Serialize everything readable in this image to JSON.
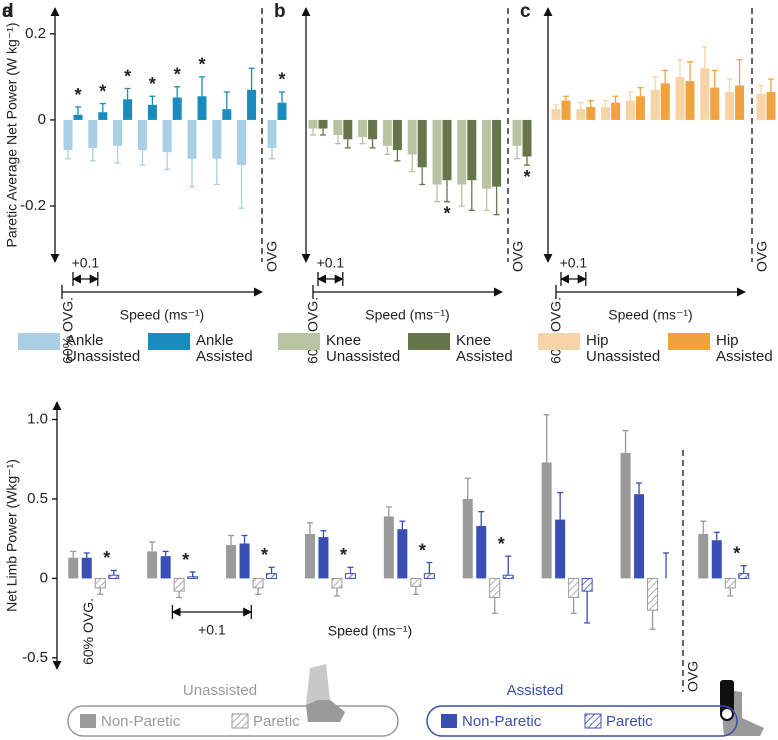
{
  "chart_data": [
    {
      "type": "bar",
      "label": "a",
      "y_label": "Paretic Average Net Power (W kg⁻¹)",
      "x_label": "Speed (ms⁻¹)",
      "step_label": "+0.1",
      "sig_label": "*",
      "categories": [
        "60% OVG.",
        null,
        null,
        null,
        null,
        null,
        null,
        null,
        "OVG"
      ],
      "series": [
        {
          "name": "Ankle Unassisted",
          "color": "#a8cfe4",
          "values": [
            -0.07,
            -0.065,
            -0.06,
            -0.07,
            -0.075,
            -0.09,
            -0.09,
            -0.105,
            -0.065
          ],
          "errors": [
            0.02,
            0.03,
            0.04,
            0.035,
            0.04,
            0.065,
            0.06,
            0.1,
            0.025
          ]
        },
        {
          "name": "Ankle Assisted",
          "color": "#1a8bbf",
          "values": [
            0.012,
            0.018,
            0.048,
            0.035,
            0.052,
            0.055,
            0.025,
            0.07,
            0.04
          ],
          "errors": [
            0.018,
            0.02,
            0.025,
            0.02,
            0.025,
            0.045,
            0.04,
            0.05,
            0.025
          ],
          "significant": [
            true,
            true,
            true,
            true,
            true,
            true,
            false,
            false,
            true
          ]
        }
      ],
      "ylim": [
        -0.33,
        0.26
      ],
      "yticks": [
        0.2,
        0,
        -0.2
      ]
    },
    {
      "type": "bar",
      "label": "b",
      "x_label": "Speed (ms⁻¹)",
      "step_label": "+0.1",
      "sig_label": "*",
      "categories": [
        "60% OVG.",
        null,
        null,
        null,
        null,
        null,
        null,
        null,
        "OVG"
      ],
      "series": [
        {
          "name": "Knee Unassisted",
          "color": "#b8c3a1",
          "values": [
            -0.02,
            -0.035,
            -0.04,
            -0.06,
            -0.08,
            -0.15,
            -0.15,
            -0.16,
            -0.06
          ],
          "errors": [
            0.015,
            0.02,
            0.015,
            0.02,
            0.04,
            0.04,
            0.05,
            0.05,
            0.03
          ]
        },
        {
          "name": "Knee Assisted",
          "color": "#67754a",
          "values": [
            -0.02,
            -0.045,
            -0.045,
            -0.07,
            -0.11,
            -0.14,
            -0.14,
            -0.155,
            -0.085
          ],
          "errors": [
            0.015,
            0.02,
            0.02,
            0.025,
            0.04,
            0.05,
            0.07,
            0.065,
            0.02
          ],
          "significant": [
            false,
            false,
            false,
            false,
            false,
            true,
            false,
            false,
            true
          ]
        }
      ],
      "ylim": [
        -0.33,
        0.26
      ]
    },
    {
      "type": "bar",
      "label": "c",
      "x_label": "Speed (ms⁻¹)",
      "step_label": "+0.1",
      "categories": [
        "60% OVG.",
        null,
        null,
        null,
        null,
        null,
        null,
        null,
        "OVG"
      ],
      "series": [
        {
          "name": "Hip Unassisted",
          "color": "#f7d3a8",
          "values": [
            0.025,
            0.025,
            0.03,
            0.045,
            0.07,
            0.1,
            0.12,
            0.065,
            0.06
          ],
          "errors": [
            0.01,
            0.015,
            0.015,
            0.02,
            0.03,
            0.04,
            0.05,
            0.03,
            0.02
          ]
        },
        {
          "name": "Hip Assisted",
          "color": "#f0a23e",
          "values": [
            0.045,
            0.03,
            0.04,
            0.055,
            0.085,
            0.09,
            0.075,
            0.08,
            0.065
          ],
          "errors": [
            0.01,
            0.015,
            0.015,
            0.02,
            0.03,
            0.045,
            0.04,
            0.06,
            0.03
          ]
        }
      ],
      "ylim": [
        -0.33,
        0.26
      ]
    },
    {
      "type": "grouped-bar",
      "label": "d",
      "y_label": "Net Limb Power (Wkg⁻¹)",
      "x_label": "Speed (ms⁻¹)",
      "step_label": "+0.1",
      "sig_label": "*",
      "categories": [
        "60% OVG.",
        null,
        null,
        null,
        null,
        null,
        null,
        null,
        "OVG"
      ],
      "groups": [
        {
          "name": "Unassisted",
          "color": "#9a9a9a",
          "series": [
            {
              "name": "Non-Paretic",
              "color": "#9a9a9a",
              "hatch": false,
              "values": [
                0.13,
                0.17,
                0.21,
                0.28,
                0.39,
                0.5,
                0.73,
                0.79,
                0.28
              ],
              "errors": [
                0.04,
                0.06,
                0.06,
                0.07,
                0.06,
                0.13,
                0.3,
                0.14,
                0.08
              ]
            },
            {
              "name": "Paretic",
              "color": "#9a9a9a",
              "hatch": true,
              "values": [
                -0.06,
                -0.08,
                -0.06,
                -0.06,
                -0.05,
                -0.12,
                -0.12,
                -0.2,
                -0.06
              ],
              "errors": [
                0.04,
                0.04,
                0.04,
                0.05,
                0.05,
                0.1,
                0.1,
                0.12,
                0.05
              ]
            }
          ]
        },
        {
          "name": "Assisted",
          "color": "#3a4fb3",
          "series": [
            {
              "name": "Non-Paretic",
              "color": "#3a4fb3",
              "hatch": false,
              "values": [
                0.13,
                0.14,
                0.22,
                0.26,
                0.31,
                0.33,
                0.37,
                0.53,
                0.24
              ],
              "errors": [
                0.03,
                0.03,
                0.05,
                0.04,
                0.05,
                0.09,
                0.17,
                0.07,
                0.05
              ]
            },
            {
              "name": "Paretic",
              "color": "#3a4fb3",
              "hatch": true,
              "values": [
                0.02,
                0.01,
                0.03,
                0.03,
                0.03,
                0.02,
                -0.08,
                0,
                0.03
              ],
              "errors": [
                0.03,
                0.03,
                0.04,
                0.04,
                0.07,
                0.12,
                0.2,
                0.16,
                0.05
              ],
              "significant": [
                true,
                true,
                true,
                true,
                true,
                true,
                false,
                false,
                true
              ]
            }
          ]
        }
      ],
      "ylim": [
        -0.57,
        1.11
      ],
      "yticks": [
        {
          "value": 1,
          "label": "1.0"
        },
        0.5,
        0,
        -0.5
      ]
    }
  ]
}
